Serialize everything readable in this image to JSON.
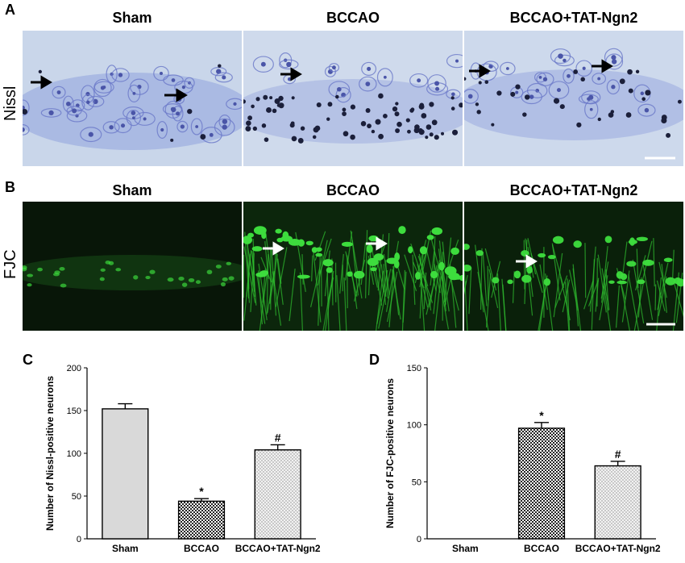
{
  "panel_a": {
    "letter": "A",
    "row_label": "Nissl",
    "columns": [
      "Sham",
      "BCCAO",
      "BCCAO+TAT-Ngn2"
    ]
  },
  "panel_b": {
    "letter": "B",
    "row_label": "FJC",
    "columns": [
      "Sham",
      "BCCAO",
      "BCCAO+TAT-Ngn2"
    ]
  },
  "colors": {
    "nissl_bg": "#c9d6ea",
    "nissl_stain": "#5a6ac0",
    "nissl_dark": "#1b1f3a",
    "fjc_bg": "#0a1a0a",
    "fjc_stain": "#3ddc3d",
    "bar_fill": "#d9d9d9",
    "bar_stroke": "#000000"
  },
  "chart_data": [
    {
      "panel": "C",
      "type": "bar",
      "categories": [
        "Sham",
        "BCCAO",
        "BCCAO+TAT-Ngn2"
      ],
      "values": [
        152,
        44,
        104
      ],
      "errors": [
        6,
        3,
        6
      ],
      "significance": [
        "",
        "*",
        "#"
      ],
      "patterns": [
        "light-solid",
        "dark-check",
        "light-dots"
      ],
      "ylabel": "Number of Nissl-positive neurons",
      "xlabel": "",
      "ylim": [
        0,
        200
      ],
      "yticks": [
        0,
        50,
        100,
        150,
        200
      ]
    },
    {
      "panel": "D",
      "type": "bar",
      "categories": [
        "Sham",
        "BCCAO",
        "BCCAO+TAT-Ngn2"
      ],
      "values": [
        0,
        97,
        64
      ],
      "errors": [
        0,
        5,
        4
      ],
      "significance": [
        "",
        "*",
        "#"
      ],
      "patterns": [
        "light-solid",
        "dark-check",
        "light-dots"
      ],
      "ylabel": "Number of FJC-positive neurons",
      "xlabel": "",
      "ylim": [
        0,
        150
      ],
      "yticks": [
        0,
        50,
        100,
        150
      ]
    }
  ]
}
